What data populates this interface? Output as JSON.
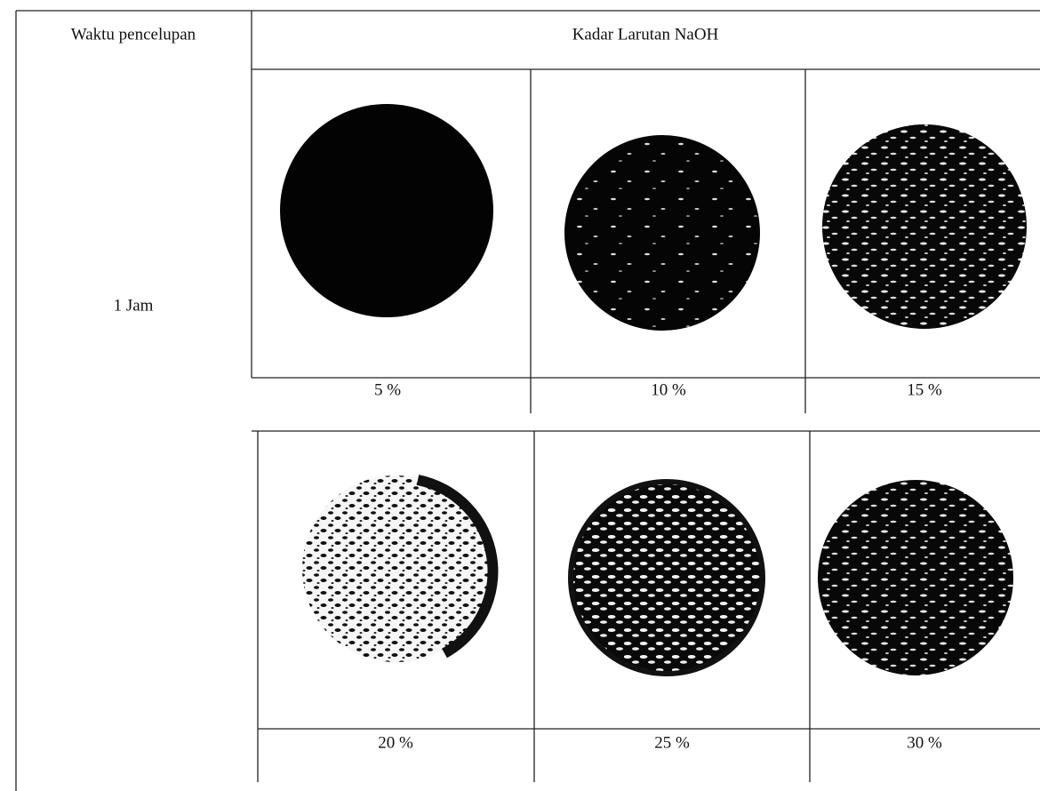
{
  "table": {
    "header": [
      "Waktu pencelupan",
      "Kadar Larutan NaOH"
    ],
    "row_label": "1 Jam",
    "captions": [
      [
        "5 %",
        "10 %",
        "15 %"
      ],
      [
        "20 %",
        "25 %",
        "30 %"
      ]
    ]
  }
}
